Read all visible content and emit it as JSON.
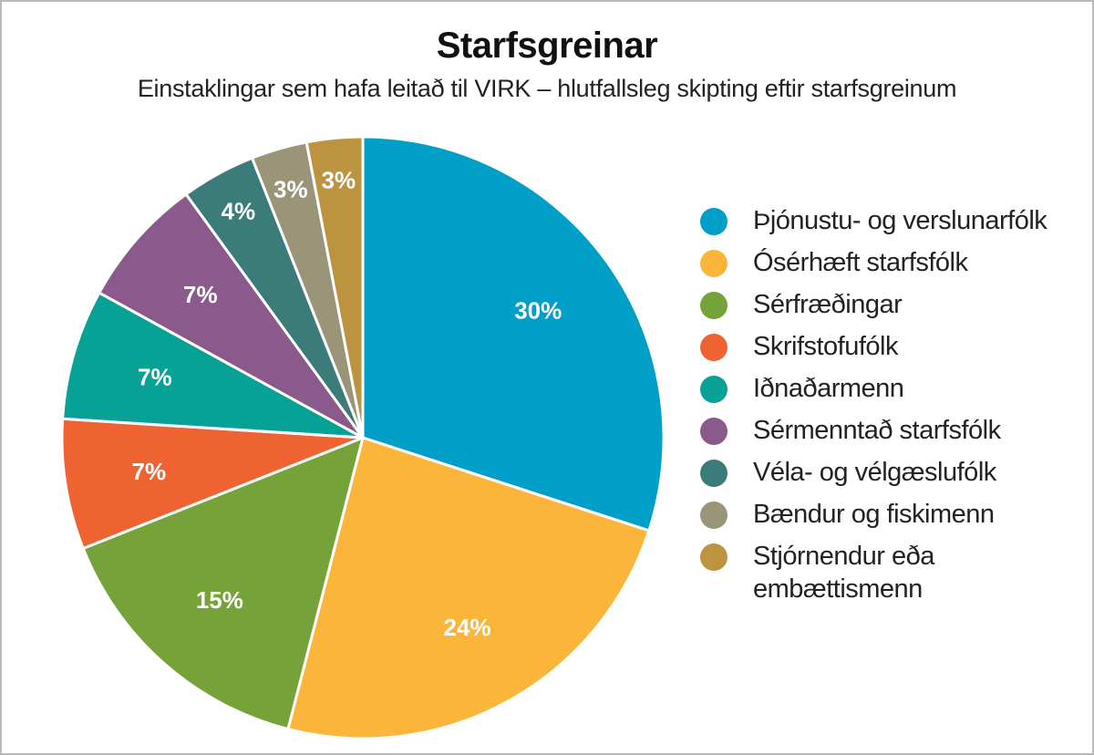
{
  "chart_data": {
    "type": "pie",
    "title": "Starfsgreinar",
    "subtitle": "Einstaklingar sem hafa leitað til VIRK – hlutfallsleg skipting eftir starfsgreinum",
    "slices": [
      {
        "name": "Þjónustu- og verslunarfólk",
        "value": 30,
        "label": "30%",
        "color": "#009fc7"
      },
      {
        "name": "Ósérhæft starfsfólk",
        "value": 24,
        "label": "24%",
        "color": "#fbb53b"
      },
      {
        "name": "Sérfræðingar",
        "value": 15,
        "label": "15%",
        "color": "#76a23a"
      },
      {
        "name": "Skrifstofufólk",
        "value": 7,
        "label": "7%",
        "color": "#ef6332"
      },
      {
        "name": "Iðnaðarmenn",
        "value": 7,
        "label": "7%",
        "color": "#07a195"
      },
      {
        "name": "Sérmenntað starfsfólk",
        "value": 7,
        "label": "7%",
        "color": "#8b5a8c"
      },
      {
        "name": "Véla- og vélgæslufólk",
        "value": 4,
        "label": "4%",
        "color": "#3b7b7a"
      },
      {
        "name": "Bændur og fiskimenn",
        "value": 3,
        "label": "3%",
        "color": "#9a9478"
      },
      {
        "name": "Stjórnendur eða embættismenn",
        "value": 3,
        "label": "3%",
        "color": "#bc9440"
      }
    ],
    "legend_position": "right"
  },
  "legend": {
    "items": [
      {
        "lines": [
          "Þjónustu- og verslunarfólk"
        ]
      },
      {
        "lines": [
          "Ósérhæft starfsfólk"
        ]
      },
      {
        "lines": [
          "Sérfræðingar"
        ]
      },
      {
        "lines": [
          "Skrifstofufólk"
        ]
      },
      {
        "lines": [
          "Iðnaðarmenn"
        ]
      },
      {
        "lines": [
          "Sérmenntað starfsfólk"
        ]
      },
      {
        "lines": [
          "Véla- og vélgæslufólk"
        ]
      },
      {
        "lines": [
          "Bændur og fiskimenn"
        ]
      },
      {
        "lines": [
          "Stjórnendur eða",
          "embættismenn"
        ]
      }
    ]
  }
}
